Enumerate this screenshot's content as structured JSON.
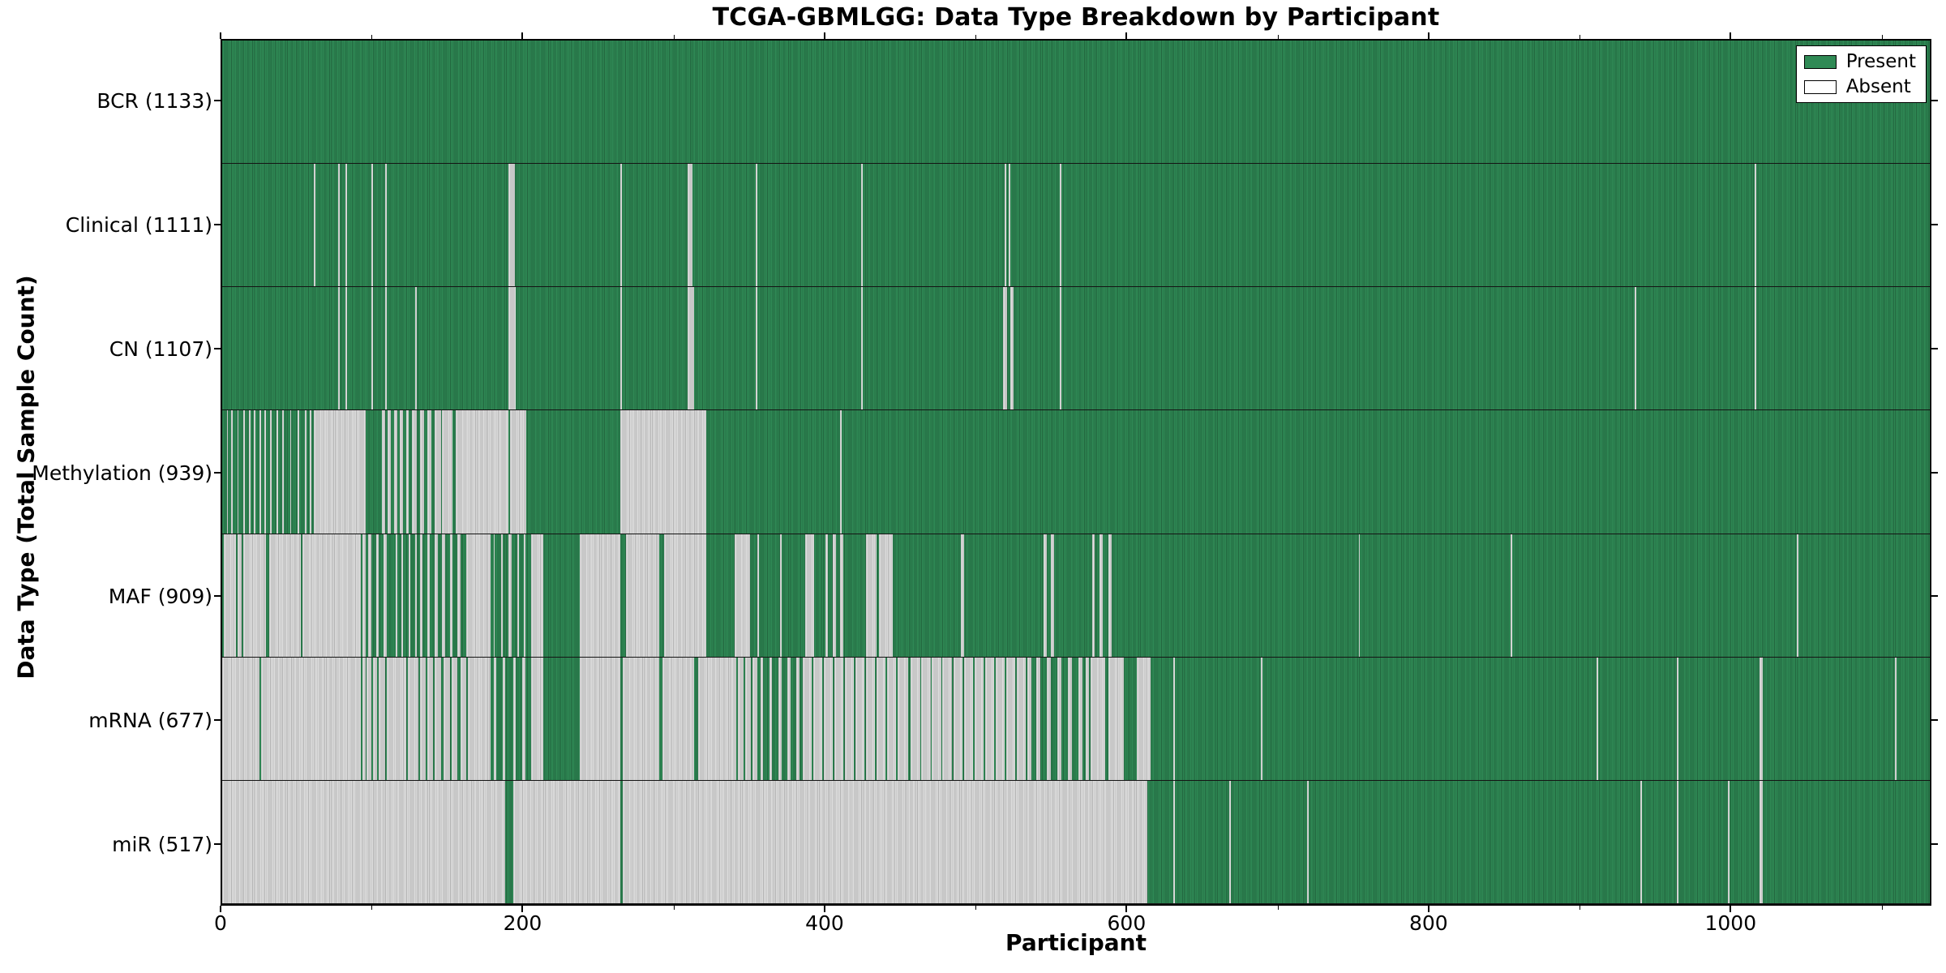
{
  "colors": {
    "present": "#2f8a55",
    "absent": "#dedede",
    "legend_absent": "#ffffff",
    "axis": "#000000"
  },
  "chart_data": {
    "type": "heatmap",
    "title": "TCGA-GBMLGG: Data Type Breakdown by Participant",
    "xlabel": "Participant",
    "ylabel": "Data Type (Total Sample Count)",
    "legend_entries": [
      "Present",
      "Absent"
    ],
    "legend_position": "upper right",
    "x_range": [
      0,
      1133
    ],
    "x_ticks": [
      {
        "value": 0,
        "label": "0"
      },
      {
        "value": 200,
        "label": "200"
      },
      {
        "value": 400,
        "label": "400"
      },
      {
        "value": 600,
        "label": "600"
      },
      {
        "value": 800,
        "label": "800"
      },
      {
        "value": 1000,
        "label": "1000"
      }
    ],
    "x_minor_ticks": [
      100,
      300,
      500,
      700,
      900,
      1100
    ],
    "grid": false,
    "rows": [
      {
        "name": "BCR",
        "count": 1133,
        "label": "BCR (1133)",
        "absent_runs": []
      },
      {
        "name": "Clinical",
        "count": 1111,
        "label": "Clinical (1111)",
        "absent_runs": [
          [
            61,
            62
          ],
          [
            77,
            78
          ],
          [
            82,
            83
          ],
          [
            99,
            100
          ],
          [
            108,
            109
          ],
          [
            190,
            194
          ],
          [
            264,
            265
          ],
          [
            309,
            312
          ],
          [
            354,
            355
          ],
          [
            424,
            425
          ],
          [
            519,
            520
          ],
          [
            522,
            523
          ],
          [
            556,
            557
          ],
          [
            1017,
            1018
          ]
        ]
      },
      {
        "name": "CN",
        "count": 1107,
        "label": "CN (1107)",
        "absent_runs": [
          [
            77,
            78
          ],
          [
            82,
            83
          ],
          [
            99,
            100
          ],
          [
            108,
            109
          ],
          [
            128,
            129
          ],
          [
            190,
            195
          ],
          [
            264,
            265
          ],
          [
            309,
            313
          ],
          [
            354,
            355
          ],
          [
            424,
            425
          ],
          [
            518,
            521
          ],
          [
            523,
            525
          ],
          [
            556,
            557
          ],
          [
            937,
            938
          ],
          [
            1017,
            1018
          ]
        ]
      },
      {
        "name": "Methylation",
        "count": 939,
        "label": "Methylation (939)",
        "absent_runs": [
          [
            3,
            4
          ],
          [
            6,
            7
          ],
          [
            10,
            11
          ],
          [
            14,
            15
          ],
          [
            18,
            19
          ],
          [
            21,
            22
          ],
          [
            25,
            26
          ],
          [
            28,
            29
          ],
          [
            32,
            33
          ],
          [
            36,
            37
          ],
          [
            40,
            41
          ],
          [
            45,
            46
          ],
          [
            50,
            51
          ],
          [
            55,
            56
          ],
          [
            58,
            59
          ],
          [
            61,
            95
          ],
          [
            106,
            108
          ],
          [
            110,
            112
          ],
          [
            114,
            116
          ],
          [
            118,
            120
          ],
          [
            122,
            124
          ],
          [
            126,
            129
          ],
          [
            131,
            134
          ],
          [
            136,
            139
          ],
          [
            141,
            145
          ],
          [
            146,
            153
          ],
          [
            155,
            190
          ],
          [
            191,
            202
          ],
          [
            264,
            321
          ],
          [
            410,
            411
          ]
        ]
      },
      {
        "name": "MAF",
        "count": 909,
        "label": "MAF (909)",
        "absent_runs": [
          [
            1,
            9
          ],
          [
            10,
            13
          ],
          [
            14,
            29
          ],
          [
            31,
            52
          ],
          [
            53,
            92
          ],
          [
            93,
            95
          ],
          [
            97,
            99
          ],
          [
            102,
            104
          ],
          [
            107,
            109
          ],
          [
            115,
            116
          ],
          [
            119,
            120
          ],
          [
            124,
            125
          ],
          [
            128,
            129
          ],
          [
            131,
            133
          ],
          [
            136,
            138
          ],
          [
            141,
            143
          ],
          [
            146,
            148
          ],
          [
            151,
            153
          ],
          [
            156,
            158
          ],
          [
            162,
            178
          ],
          [
            180,
            181
          ],
          [
            185,
            186
          ],
          [
            190,
            192
          ],
          [
            196,
            197
          ],
          [
            200,
            201
          ],
          [
            205,
            213
          ],
          [
            237,
            264
          ],
          [
            268,
            290
          ],
          [
            293,
            321
          ],
          [
            340,
            350
          ],
          [
            355,
            356
          ],
          [
            370,
            371
          ],
          [
            387,
            393
          ],
          [
            400,
            402
          ],
          [
            405,
            407
          ],
          [
            410,
            412
          ],
          [
            427,
            434
          ],
          [
            436,
            445
          ],
          [
            490,
            492
          ],
          [
            545,
            547
          ],
          [
            550,
            552
          ],
          [
            577,
            579
          ],
          [
            582,
            584
          ],
          [
            588,
            590
          ],
          [
            754,
            755
          ],
          [
            855,
            856
          ],
          [
            1045,
            1046
          ]
        ]
      },
      {
        "name": "mRNA",
        "count": 677,
        "label": "mRNA (677)",
        "absent_runs": [
          [
            0,
            25
          ],
          [
            26,
            92
          ],
          [
            93,
            95
          ],
          [
            96,
            99
          ],
          [
            100,
            103
          ],
          [
            104,
            108
          ],
          [
            109,
            114
          ],
          [
            114,
            122
          ],
          [
            123,
            130
          ],
          [
            131,
            135
          ],
          [
            136,
            140
          ],
          [
            141,
            145
          ],
          [
            147,
            151
          ],
          [
            152,
            156
          ],
          [
            158,
            162
          ],
          [
            163,
            178
          ],
          [
            180,
            182
          ],
          [
            186,
            188
          ],
          [
            193,
            195
          ],
          [
            199,
            201
          ],
          [
            205,
            213
          ],
          [
            237,
            264
          ],
          [
            266,
            290
          ],
          [
            292,
            313
          ],
          [
            316,
            341
          ],
          [
            342,
            346
          ],
          [
            347,
            351
          ],
          [
            352,
            355
          ],
          [
            357,
            359
          ],
          [
            363,
            365
          ],
          [
            369,
            371
          ],
          [
            375,
            377
          ],
          [
            381,
            383
          ],
          [
            385,
            391
          ],
          [
            392,
            398
          ],
          [
            399,
            405
          ],
          [
            406,
            412
          ],
          [
            413,
            419
          ],
          [
            420,
            426
          ],
          [
            427,
            433
          ],
          [
            434,
            440
          ],
          [
            441,
            447
          ],
          [
            448,
            455
          ],
          [
            457,
            463
          ],
          [
            464,
            470
          ],
          [
            471,
            477
          ],
          [
            478,
            484
          ],
          [
            485,
            491
          ],
          [
            492,
            498
          ],
          [
            499,
            505
          ],
          [
            506,
            512
          ],
          [
            513,
            519
          ],
          [
            520,
            526
          ],
          [
            527,
            533
          ],
          [
            534,
            537
          ],
          [
            540,
            543
          ],
          [
            547,
            550
          ],
          [
            554,
            557
          ],
          [
            561,
            564
          ],
          [
            568,
            571
          ],
          [
            573,
            575
          ],
          [
            576,
            586
          ],
          [
            588,
            598
          ],
          [
            607,
            616
          ],
          [
            631,
            632
          ],
          [
            689,
            690
          ],
          [
            912,
            913
          ],
          [
            965,
            966
          ],
          [
            1020,
            1022
          ],
          [
            1110,
            1111
          ]
        ]
      },
      {
        "name": "miR",
        "count": 517,
        "label": "miR (517)",
        "absent_runs": [
          [
            0,
            188
          ],
          [
            193,
            264
          ],
          [
            266,
            614
          ],
          [
            631,
            632
          ],
          [
            668,
            669
          ],
          [
            720,
            721
          ],
          [
            941,
            942
          ],
          [
            965,
            966
          ],
          [
            999,
            1000
          ],
          [
            1020,
            1022
          ]
        ]
      }
    ]
  }
}
